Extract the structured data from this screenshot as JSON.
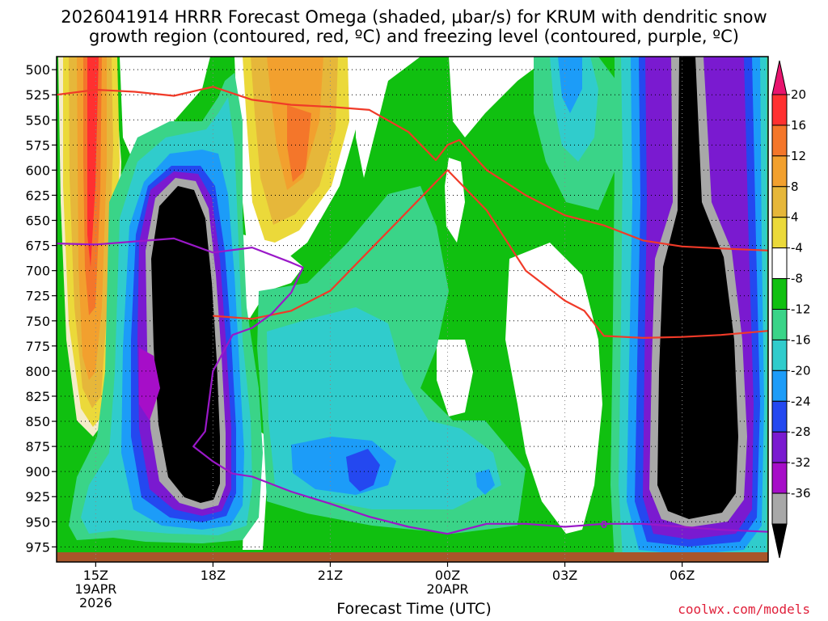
{
  "title_line1": "2026041914 HRRR Forecast Omega (shaded, μbar/s) for KRUM with dendritic snow",
  "title_line2": "growth region (contoured, red, ºC) and freezing level (contoured, purple, ºC)",
  "credit": "coolwx.com/models",
  "chart_data": {
    "type": "heatmap",
    "xlabel": "Forecast Time (UTC)",
    "ylabel": "",
    "x_range_hours_from_14Z": [
      0,
      18.2
    ],
    "x_ticks": [
      {
        "hour": 1,
        "lines": [
          "15Z",
          "19APR",
          "2026"
        ]
      },
      {
        "hour": 4,
        "lines": [
          "18Z"
        ]
      },
      {
        "hour": 7,
        "lines": [
          "21Z"
        ]
      },
      {
        "hour": 10,
        "lines": [
          "00Z",
          "20APR"
        ]
      },
      {
        "hour": 13,
        "lines": [
          "03Z"
        ]
      },
      {
        "hour": 16,
        "lines": [
          "06Z"
        ]
      }
    ],
    "y_ticks_mb": [
      500,
      525,
      550,
      575,
      600,
      625,
      650,
      675,
      700,
      725,
      750,
      775,
      800,
      825,
      850,
      875,
      900,
      925,
      950,
      975
    ],
    "y_range_mb": [
      487,
      990
    ],
    "colorbar": {
      "labels": [
        "20",
        "16",
        "12",
        "8",
        "4",
        "-4",
        "-8",
        "-12",
        "-16",
        "-20",
        "-24",
        "-28",
        "-32",
        "-36"
      ],
      "colors": [
        "#e8146e",
        "#ff3030",
        "#f4762a",
        "#f2a02e",
        "#e6b73a",
        "#ebd93a",
        "#ffffff",
        "#10c010",
        "#3ad488",
        "#30cccc",
        "#1c9cf8",
        "#2448f0",
        "#7a1ad0",
        "#a60ec8",
        "#a8a8a8",
        "#000000"
      ]
    },
    "omega_features": [
      {
        "name": "rising column near 18Z",
        "center_hour": 4.0,
        "top_mb": 580,
        "bottom_mb": 945,
        "min_value": -36
      },
      {
        "name": "rising column near 06Z",
        "center_hour": 16.0,
        "top_mb": 487,
        "bottom_mb": 945,
        "min_value": -36
      },
      {
        "name": "sinking near 15Z",
        "center_hour": 1.0,
        "top_mb": 487,
        "bottom_mb": 830,
        "max_value": 16
      },
      {
        "name": "sinking near 20Z",
        "center_hour": 6.5,
        "top_mb": 487,
        "bottom_mb": 660,
        "max_value": 12
      }
    ],
    "red_contours": [
      {
        "hours": [
          0,
          1,
          2,
          3,
          4,
          5,
          6,
          7,
          8,
          9,
          9.7,
          10,
          10.3,
          11,
          12,
          13,
          14,
          15,
          16,
          17,
          18.2
        ],
        "mb": [
          525,
          520,
          522,
          526,
          517,
          530,
          535,
          537,
          540,
          562,
          590,
          575,
          570,
          600,
          625,
          645,
          655,
          670,
          676,
          678,
          680
        ]
      },
      {
        "hours": [
          4,
          5,
          6,
          7,
          8,
          9,
          10,
          11,
          12,
          13,
          13.5,
          14,
          15,
          16,
          17,
          18.2
        ],
        "mb": [
          745,
          748,
          740,
          720,
          680,
          640,
          600,
          640,
          700,
          730,
          740,
          765,
          767,
          766,
          764,
          760
        ]
      }
    ],
    "purple_contours": [
      {
        "hours": [
          0,
          1,
          2,
          3,
          4,
          5,
          6,
          6.3,
          6,
          5.5,
          5,
          4.5,
          4,
          3.8,
          3.5,
          4,
          4.5,
          5,
          6,
          7,
          8,
          9,
          10,
          11,
          12,
          13,
          14,
          15,
          16,
          17,
          18.2
        ],
        "mb": [
          673,
          674,
          671,
          668,
          682,
          677,
          692,
          697,
          722,
          743,
          757,
          764,
          800,
          860,
          875,
          890,
          902,
          905,
          920,
          932,
          945,
          955,
          962,
          952,
          952,
          955,
          952,
          952,
          955,
          958,
          960
        ]
      }
    ],
    "contour_labels": [
      {
        "text": "0",
        "hour": 14.0,
        "mb": 952
      }
    ]
  }
}
